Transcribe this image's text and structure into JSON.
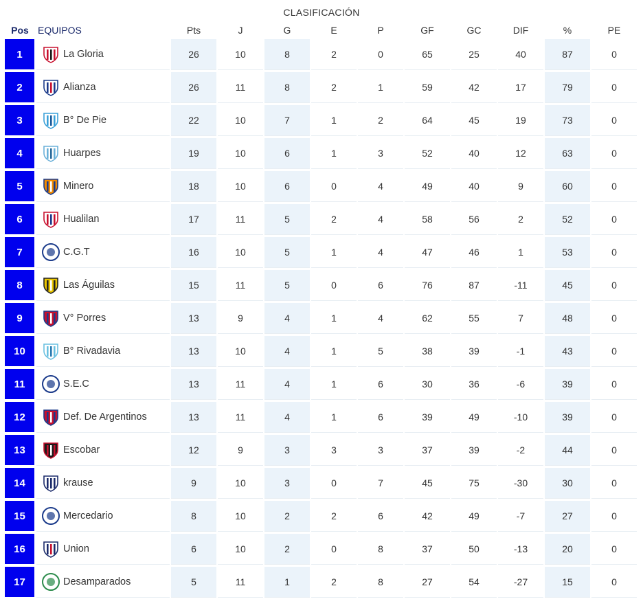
{
  "title": "CLASIFICACIÓN",
  "headers": {
    "pos": "Pos",
    "equipos": "EQUIPOS",
    "cols": [
      "Pts",
      "J",
      "G",
      "E",
      "P",
      "GF",
      "GC",
      "DIF",
      "%",
      "PE"
    ]
  },
  "rows": [
    {
      "pos": "1",
      "team": "La Gloria",
      "logo": "la-gloria-crest",
      "stats": [
        "26",
        "10",
        "8",
        "2",
        "0",
        "65",
        "25",
        "40",
        "87",
        "0"
      ]
    },
    {
      "pos": "2",
      "team": "Alianza",
      "logo": "alianza-crest",
      "stats": [
        "26",
        "11",
        "8",
        "2",
        "1",
        "59",
        "42",
        "17",
        "79",
        "0"
      ]
    },
    {
      "pos": "3",
      "team": "B° De Pie",
      "logo": "barrio-de-pie-crest",
      "stats": [
        "22",
        "10",
        "7",
        "1",
        "2",
        "64",
        "45",
        "19",
        "73",
        "0"
      ]
    },
    {
      "pos": "4",
      "team": "Huarpes",
      "logo": "huarpes-crest",
      "stats": [
        "19",
        "10",
        "6",
        "1",
        "3",
        "52",
        "40",
        "12",
        "63",
        "0"
      ]
    },
    {
      "pos": "5",
      "team": "Minero",
      "logo": "minero-crest",
      "stats": [
        "18",
        "10",
        "6",
        "0",
        "4",
        "49",
        "40",
        "9",
        "60",
        "0"
      ]
    },
    {
      "pos": "6",
      "team": "Hualilan",
      "logo": "hualilan-crest",
      "stats": [
        "17",
        "11",
        "5",
        "2",
        "4",
        "58",
        "56",
        "2",
        "52",
        "0"
      ]
    },
    {
      "pos": "7",
      "team": "C.G.T",
      "logo": "cgt-crest",
      "stats": [
        "16",
        "10",
        "5",
        "1",
        "4",
        "47",
        "46",
        "1",
        "53",
        "0"
      ]
    },
    {
      "pos": "8",
      "team": "Las Águilas",
      "logo": "las-aguilas-crest",
      "stats": [
        "15",
        "11",
        "5",
        "0",
        "6",
        "76",
        "87",
        "-11",
        "45",
        "0"
      ]
    },
    {
      "pos": "9",
      "team": "V° Porres",
      "logo": "villa-porres-crest",
      "stats": [
        "13",
        "9",
        "4",
        "1",
        "4",
        "62",
        "55",
        "7",
        "48",
        "0"
      ]
    },
    {
      "pos": "10",
      "team": "B° Rivadavia",
      "logo": "barrio-rivadavia-crest",
      "stats": [
        "13",
        "10",
        "4",
        "1",
        "5",
        "38",
        "39",
        "-1",
        "43",
        "0"
      ]
    },
    {
      "pos": "11",
      "team": "S.E.C",
      "logo": "sec-crest",
      "stats": [
        "13",
        "11",
        "4",
        "1",
        "6",
        "30",
        "36",
        "-6",
        "39",
        "0"
      ]
    },
    {
      "pos": "12",
      "team": "Def. De Argentinos",
      "logo": "def-argentinos-crest",
      "stats": [
        "13",
        "11",
        "4",
        "1",
        "6",
        "39",
        "49",
        "-10",
        "39",
        "0"
      ]
    },
    {
      "pos": "13",
      "team": "Escobar",
      "logo": "escobar-crest",
      "stats": [
        "12",
        "9",
        "3",
        "3",
        "3",
        "37",
        "39",
        "-2",
        "44",
        "0"
      ]
    },
    {
      "pos": "14",
      "team": "krause",
      "logo": "krause-crest",
      "stats": [
        "9",
        "10",
        "3",
        "0",
        "7",
        "45",
        "75",
        "-30",
        "30",
        "0"
      ]
    },
    {
      "pos": "15",
      "team": "Mercedario",
      "logo": "mercedario-crest",
      "stats": [
        "8",
        "10",
        "2",
        "2",
        "6",
        "42",
        "49",
        "-7",
        "27",
        "0"
      ]
    },
    {
      "pos": "16",
      "team": "Union",
      "logo": "union-crest",
      "stats": [
        "6",
        "10",
        "2",
        "0",
        "8",
        "37",
        "50",
        "-13",
        "20",
        "0"
      ]
    },
    {
      "pos": "17",
      "team": "Desamparados",
      "logo": "desamparados-crest",
      "stats": [
        "5",
        "11",
        "1",
        "2",
        "8",
        "27",
        "54",
        "-27",
        "15",
        "0"
      ]
    }
  ],
  "colors": {
    "pos_bg": "#0000ee",
    "shade": "#ebf3fa",
    "header_text": "#1b2a6b"
  }
}
